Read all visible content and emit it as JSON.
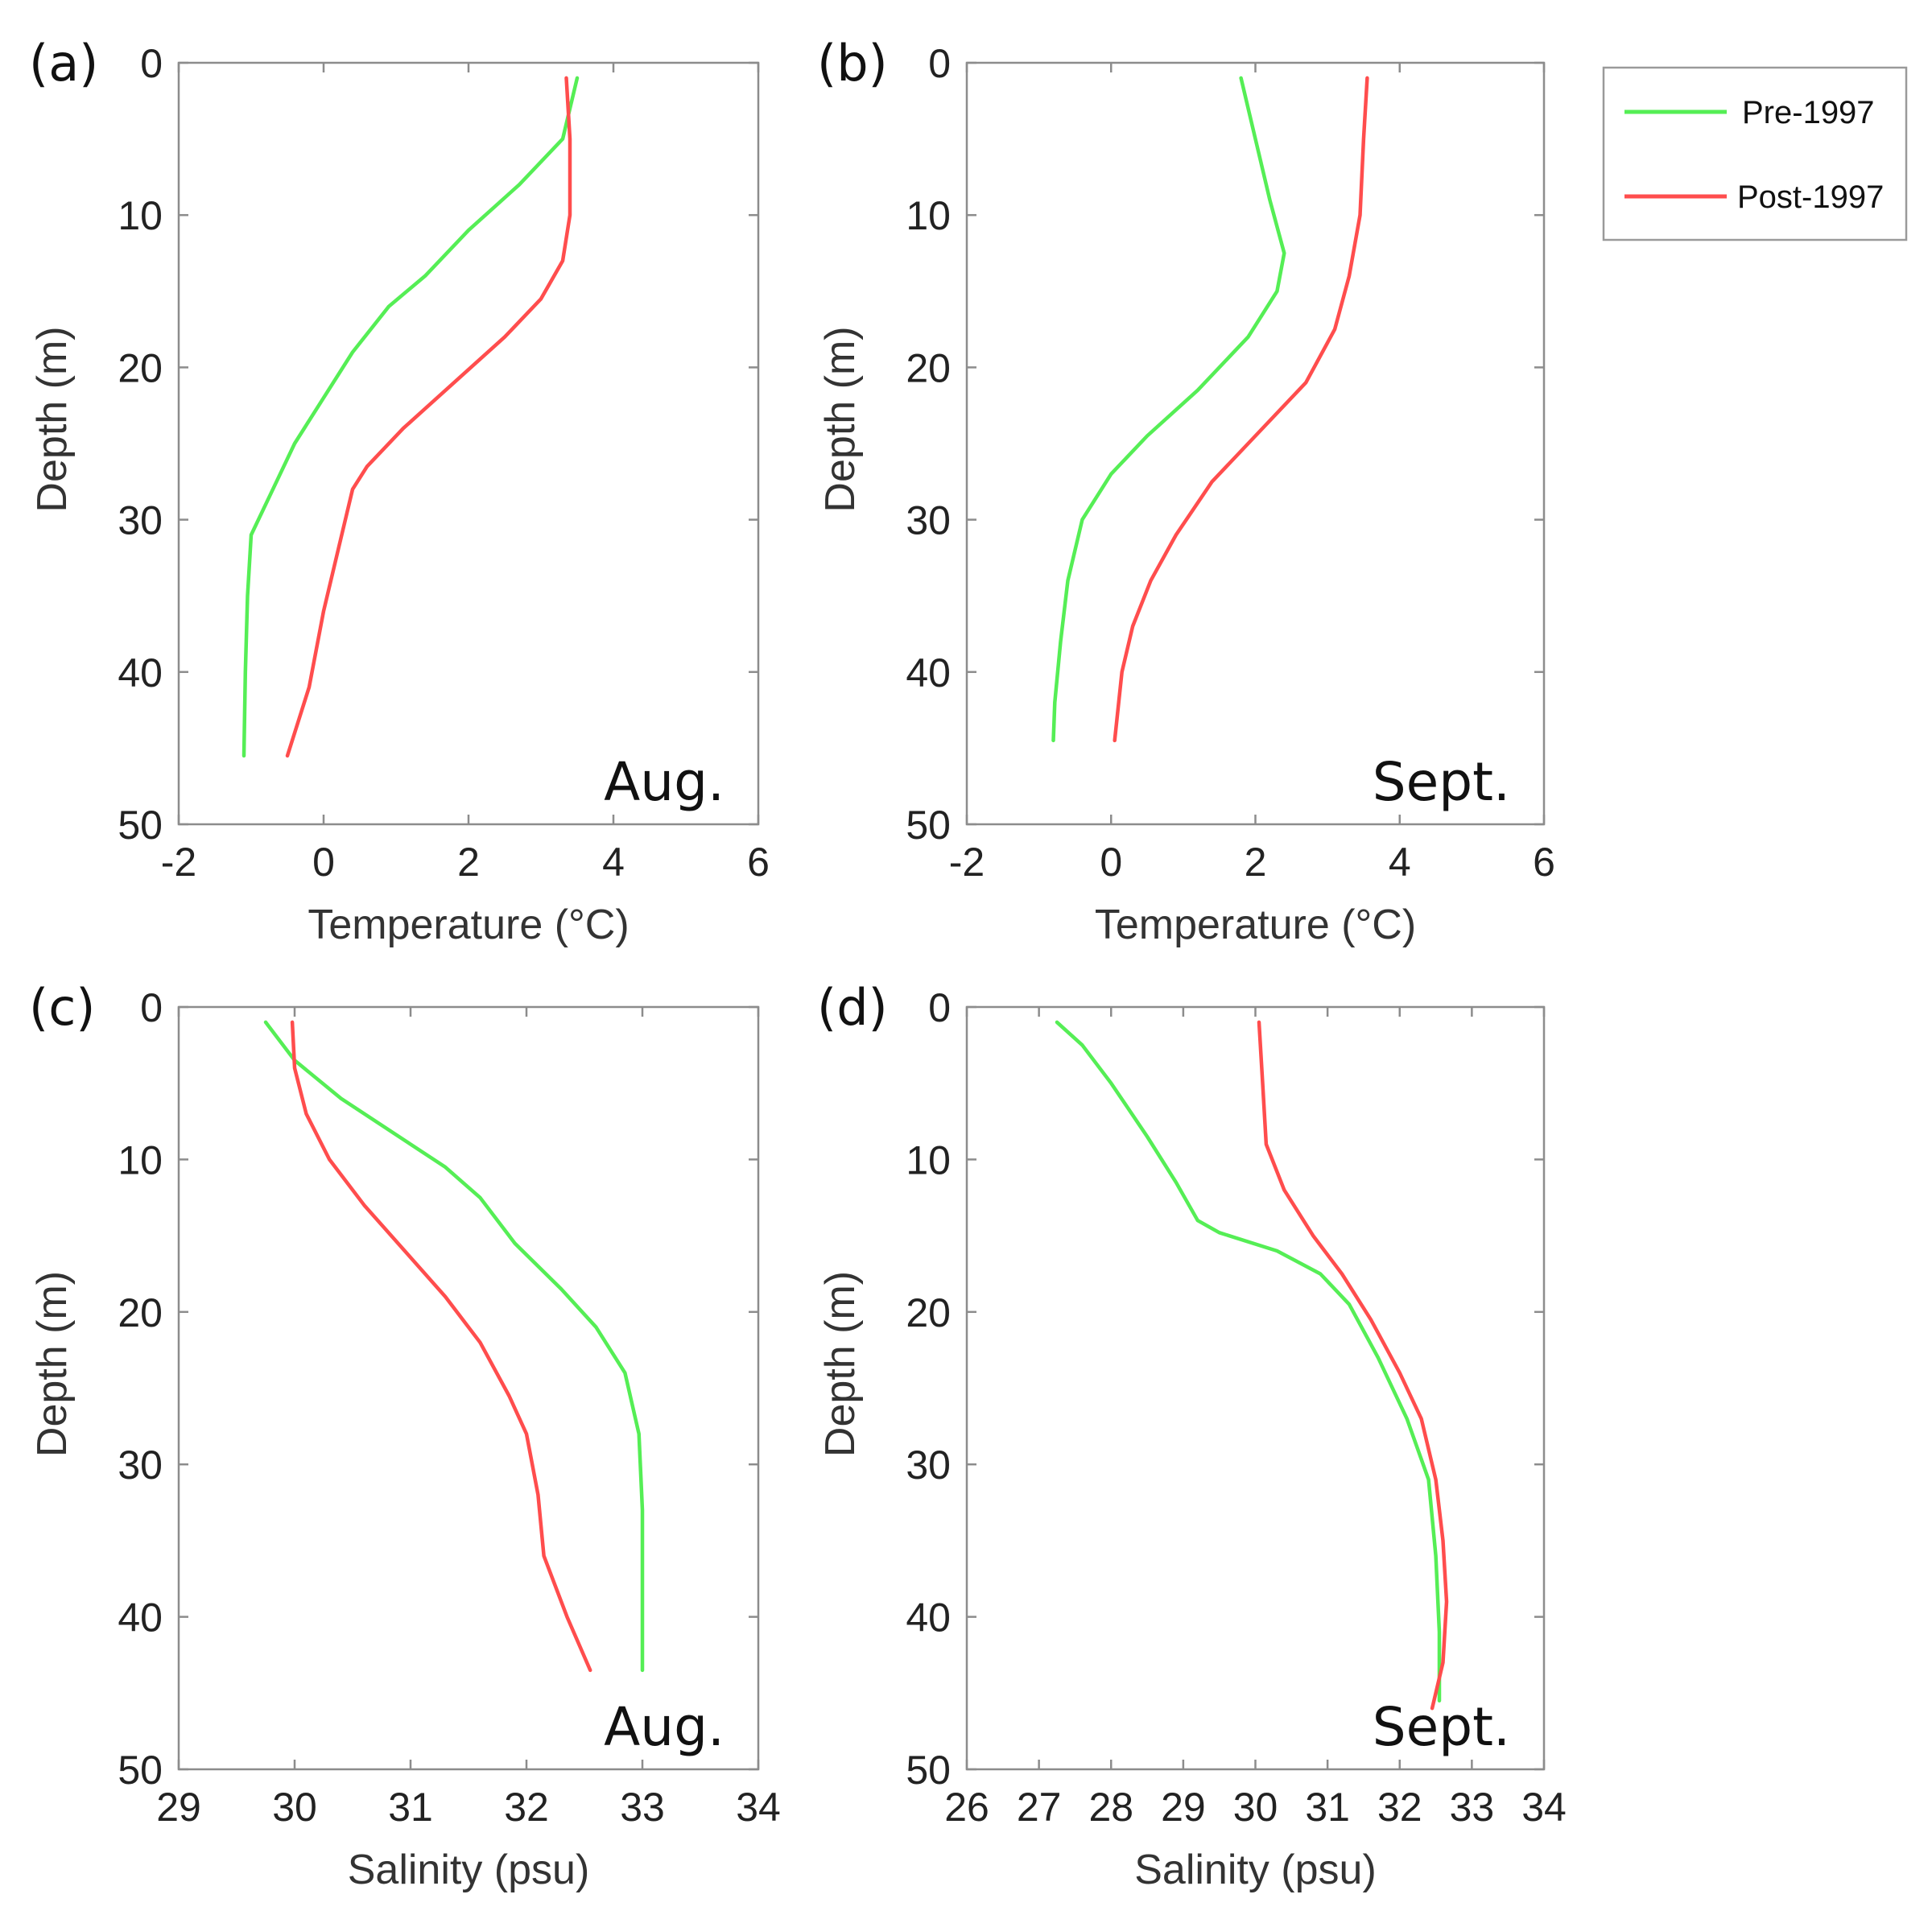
{
  "legend": [
    {
      "label": "Pre-1997",
      "color": "#55ee55"
    },
    {
      "label": "Post-1997",
      "color": "#ff4d4d"
    }
  ],
  "chart_data": [
    {
      "type": "line",
      "tag": "(a)",
      "month": "Aug.",
      "xlabel": "Temperature (°C)",
      "ylabel": "Depth (m)",
      "xlim": [
        -2,
        6
      ],
      "ylim": [
        0,
        50
      ],
      "y_inverted": true,
      "xticks": [
        -2,
        0,
        2,
        4,
        6
      ],
      "yticks": [
        0,
        10,
        20,
        30,
        40,
        50
      ],
      "series": [
        {
          "name": "Pre-1997",
          "color": "#55ee55",
          "points": [
            [
              3.5,
              1
            ],
            [
              3.3,
              5
            ],
            [
              2.7,
              8
            ],
            [
              2.0,
              11
            ],
            [
              1.4,
              14
            ],
            [
              0.9,
              16
            ],
            [
              0.4,
              19
            ],
            [
              0.0,
              22
            ],
            [
              -0.4,
              25
            ],
            [
              -0.7,
              28
            ],
            [
              -1.0,
              31
            ],
            [
              -1.05,
              35
            ],
            [
              -1.08,
              40
            ],
            [
              -1.1,
              45.5
            ]
          ]
        },
        {
          "name": "Post-1997",
          "color": "#ff4d4d",
          "points": [
            [
              3.35,
              1
            ],
            [
              3.4,
              5
            ],
            [
              3.4,
              10
            ],
            [
              3.3,
              13
            ],
            [
              3.0,
              15.5
            ],
            [
              2.5,
              18
            ],
            [
              1.8,
              21
            ],
            [
              1.1,
              24
            ],
            [
              0.6,
              26.5
            ],
            [
              0.4,
              28
            ],
            [
              0.2,
              32
            ],
            [
              0.0,
              36
            ],
            [
              -0.2,
              41
            ],
            [
              -0.5,
              45.5
            ]
          ]
        }
      ]
    },
    {
      "type": "line",
      "tag": "(b)",
      "month": "Sept.",
      "xlabel": "Temperature (°C)",
      "ylabel": "Depth (m)",
      "xlim": [
        -2,
        6
      ],
      "ylim": [
        0,
        50
      ],
      "y_inverted": true,
      "xticks": [
        -2,
        0,
        2,
        4,
        6
      ],
      "yticks": [
        0,
        10,
        20,
        30,
        40,
        50
      ],
      "series": [
        {
          "name": "Pre-1997",
          "color": "#55ee55",
          "points": [
            [
              1.8,
              1
            ],
            [
              2.0,
              5
            ],
            [
              2.2,
              9
            ],
            [
              2.4,
              12.5
            ],
            [
              2.3,
              15
            ],
            [
              1.9,
              18
            ],
            [
              1.2,
              21.5
            ],
            [
              0.5,
              24.5
            ],
            [
              0.0,
              27
            ],
            [
              -0.4,
              30
            ],
            [
              -0.6,
              34
            ],
            [
              -0.7,
              38
            ],
            [
              -0.78,
              42
            ],
            [
              -0.8,
              44.5
            ]
          ]
        },
        {
          "name": "Post-1997",
          "color": "#ff4d4d",
          "points": [
            [
              3.55,
              1
            ],
            [
              3.5,
              5
            ],
            [
              3.45,
              10
            ],
            [
              3.3,
              14
            ],
            [
              3.1,
              17.5
            ],
            [
              2.7,
              21
            ],
            [
              2.0,
              24.5
            ],
            [
              1.4,
              27.5
            ],
            [
              0.9,
              31
            ],
            [
              0.55,
              34
            ],
            [
              0.3,
              37
            ],
            [
              0.15,
              40
            ],
            [
              0.05,
              44.5
            ]
          ]
        }
      ]
    },
    {
      "type": "line",
      "tag": "(c)",
      "month": "Aug.",
      "xlabel": "Salinity (psu)",
      "ylabel": "Depth (m)",
      "xlim": [
        29,
        34
      ],
      "ylim": [
        0,
        50
      ],
      "y_inverted": true,
      "xticks": [
        29,
        30,
        31,
        32,
        33,
        34
      ],
      "yticks": [
        0,
        10,
        20,
        30,
        40,
        50
      ],
      "series": [
        {
          "name": "Pre-1997",
          "color": "#55ee55",
          "points": [
            [
              29.75,
              1
            ],
            [
              30.0,
              3.5
            ],
            [
              30.4,
              6
            ],
            [
              30.9,
              8.5
            ],
            [
              31.3,
              10.5
            ],
            [
              31.6,
              12.5
            ],
            [
              31.9,
              15.5
            ],
            [
              32.3,
              18.5
            ],
            [
              32.6,
              21
            ],
            [
              32.85,
              24
            ],
            [
              32.97,
              28
            ],
            [
              33.0,
              33
            ],
            [
              33.0,
              38
            ],
            [
              33.0,
              43.5
            ]
          ]
        },
        {
          "name": "Post-1997",
          "color": "#ff4d4d",
          "points": [
            [
              29.98,
              1
            ],
            [
              30.0,
              4
            ],
            [
              30.1,
              7
            ],
            [
              30.3,
              10
            ],
            [
              30.6,
              13
            ],
            [
              30.95,
              16
            ],
            [
              31.3,
              19
            ],
            [
              31.6,
              22
            ],
            [
              31.85,
              25.5
            ],
            [
              32.0,
              28
            ],
            [
              32.1,
              32
            ],
            [
              32.15,
              36
            ],
            [
              32.35,
              40
            ],
            [
              32.55,
              43.5
            ]
          ]
        }
      ]
    },
    {
      "type": "line",
      "tag": "(d)",
      "month": "Sept.",
      "xlabel": "Salinity (psu)",
      "ylabel": "Depth (m)",
      "xlim": [
        26,
        34
      ],
      "ylim": [
        0,
        50
      ],
      "y_inverted": true,
      "xticks": [
        26,
        27,
        28,
        29,
        30,
        31,
        32,
        33,
        34
      ],
      "yticks": [
        0,
        10,
        20,
        30,
        40,
        50
      ],
      "series": [
        {
          "name": "Pre-1997",
          "color": "#55ee55",
          "points": [
            [
              27.25,
              1
            ],
            [
              27.6,
              2.5
            ],
            [
              28.0,
              5
            ],
            [
              28.5,
              8.5
            ],
            [
              28.9,
              11.5
            ],
            [
              29.2,
              14
            ],
            [
              29.5,
              14.8
            ],
            [
              30.3,
              16
            ],
            [
              30.9,
              17.5
            ],
            [
              31.3,
              19.5
            ],
            [
              31.7,
              23
            ],
            [
              32.1,
              27
            ],
            [
              32.4,
              31
            ],
            [
              32.5,
              36
            ],
            [
              32.55,
              41
            ],
            [
              32.55,
              45.5
            ]
          ]
        },
        {
          "name": "Post-1997",
          "color": "#ff4d4d",
          "points": [
            [
              30.05,
              1
            ],
            [
              30.1,
              5
            ],
            [
              30.15,
              9
            ],
            [
              30.4,
              12
            ],
            [
              30.8,
              15
            ],
            [
              31.2,
              17.5
            ],
            [
              31.6,
              20.5
            ],
            [
              32.0,
              24
            ],
            [
              32.3,
              27
            ],
            [
              32.5,
              31
            ],
            [
              32.6,
              35
            ],
            [
              32.65,
              39
            ],
            [
              32.6,
              43
            ],
            [
              32.45,
              46
            ]
          ]
        }
      ]
    }
  ]
}
